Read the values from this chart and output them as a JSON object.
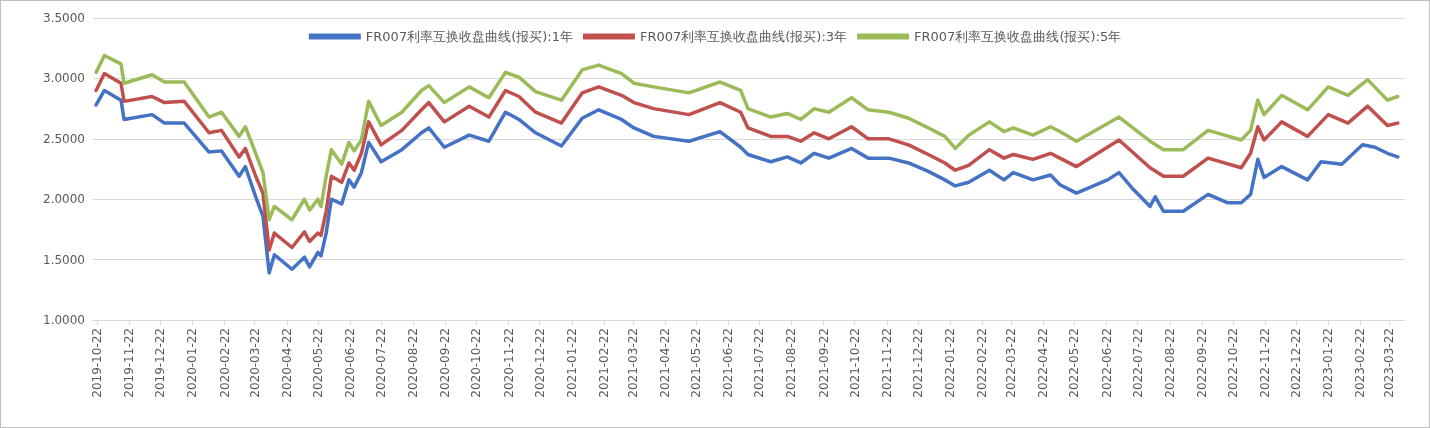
{
  "chart_data": {
    "type": "line",
    "legend": "top",
    "grid": "y",
    "marker": "none",
    "line_style": "solid",
    "xlim": [
      "2019-10-18",
      "2023-04-06"
    ],
    "xticks": [
      "2019-10-22",
      "2019-11-22",
      "2019-12-22",
      "2020-01-22",
      "2020-02-22",
      "2020-03-22",
      "2020-04-22",
      "2020-05-22",
      "2020-06-22",
      "2020-07-22",
      "2020-08-22",
      "2020-09-22",
      "2020-10-22",
      "2020-11-22",
      "2020-12-22",
      "2021-01-22",
      "2021-02-22",
      "2021-03-22",
      "2021-04-22",
      "2021-05-22",
      "2021-06-22",
      "2021-07-22",
      "2021-08-22",
      "2021-09-22",
      "2021-10-22",
      "2021-11-22",
      "2021-12-22",
      "2022-01-22",
      "2022-02-22",
      "2022-03-22",
      "2022-04-22",
      "2022-05-22",
      "2022-06-22",
      "2022-07-22",
      "2022-08-22",
      "2022-09-22",
      "2022-10-22",
      "2022-11-22",
      "2022-12-22",
      "2023-01-22",
      "2023-02-22",
      "2023-03-22"
    ],
    "ylim": [
      1,
      3.5
    ],
    "yticks": [
      {
        "value": 1,
        "label": "1.0000"
      },
      {
        "value": 1.5,
        "label": "1.5000"
      },
      {
        "value": 2,
        "label": "2.0000"
      },
      {
        "value": 2.5,
        "label": "2.5000"
      },
      {
        "value": 3,
        "label": "3.0000"
      },
      {
        "value": 3.5,
        "label": "3.5000"
      }
    ],
    "series": [
      {
        "name": "FR007利率互换收盘曲线(报买):1年",
        "color": "#4472c4",
        "x": [
          "2019-10-21",
          "2019-10-29",
          "2019-11-14",
          "2019-11-17",
          "2019-12-14",
          "2019-12-26",
          "2020-01-14",
          "2020-02-07",
          "2020-02-19",
          "2020-03-07",
          "2020-03-13",
          "2020-03-23",
          "2020-03-30",
          "2020-04-05",
          "2020-04-10",
          "2020-04-27",
          "2020-05-09",
          "2020-05-14",
          "2020-05-22",
          "2020-05-25",
          "2020-05-30",
          "2020-06-04",
          "2020-06-14",
          "2020-06-21",
          "2020-06-26",
          "2020-07-03",
          "2020-07-10",
          "2020-07-22",
          "2020-08-11",
          "2020-08-30",
          "2020-09-06",
          "2020-09-21",
          "2020-10-15",
          "2020-11-03",
          "2020-11-19",
          "2020-12-02",
          "2020-12-18",
          "2021-01-12",
          "2021-02-01",
          "2021-02-17",
          "2021-03-11",
          "2021-03-23",
          "2021-04-11",
          "2021-05-15",
          "2021-06-14",
          "2021-07-04",
          "2021-07-11",
          "2021-08-02",
          "2021-08-18",
          "2021-08-31",
          "2021-09-13",
          "2021-09-27",
          "2021-10-19",
          "2021-11-04",
          "2021-11-24",
          "2021-12-13",
          "2022-01-01",
          "2022-01-17",
          "2022-01-27",
          "2022-02-09",
          "2022-03-01",
          "2022-03-15",
          "2022-03-24",
          "2022-04-12",
          "2022-04-29",
          "2022-05-08",
          "2022-05-24",
          "2022-06-23",
          "2022-07-04",
          "2022-07-18",
          "2022-08-03",
          "2022-08-08",
          "2022-08-16",
          "2022-09-04",
          "2022-09-28",
          "2022-10-17",
          "2022-10-30",
          "2022-11-08",
          "2022-11-15",
          "2022-11-21",
          "2022-12-08",
          "2023-01-02",
          "2023-01-15",
          "2023-02-04",
          "2023-02-24",
          "2023-03-08",
          "2023-03-20",
          "2023-03-30"
        ],
        "values": [
          2.78,
          2.9,
          2.82,
          2.66,
          2.7,
          2.63,
          2.63,
          2.39,
          2.4,
          2.19,
          2.27,
          2.02,
          1.86,
          1.39,
          1.54,
          1.42,
          1.52,
          1.44,
          1.56,
          1.53,
          1.72,
          2.0,
          1.96,
          2.16,
          2.1,
          2.22,
          2.47,
          2.31,
          2.41,
          2.55,
          2.59,
          2.43,
          2.53,
          2.48,
          2.72,
          2.66,
          2.55,
          2.44,
          2.67,
          2.74,
          2.66,
          2.59,
          2.52,
          2.48,
          2.56,
          2.43,
          2.37,
          2.31,
          2.35,
          2.3,
          2.38,
          2.34,
          2.42,
          2.34,
          2.34,
          2.3,
          2.23,
          2.16,
          2.11,
          2.14,
          2.24,
          2.16,
          2.22,
          2.16,
          2.2,
          2.12,
          2.05,
          2.16,
          2.22,
          2.08,
          1.94,
          2.02,
          1.9,
          1.9,
          2.04,
          1.97,
          1.97,
          2.04,
          2.33,
          2.18,
          2.27,
          2.16,
          2.31,
          2.29,
          2.45,
          2.43,
          2.38,
          2.35
        ]
      },
      {
        "name": "FR007利率互换收盘曲线(报买):3年",
        "color": "#c0504d",
        "x": [
          "2019-10-21",
          "2019-10-29",
          "2019-11-14",
          "2019-11-17",
          "2019-12-14",
          "2019-12-26",
          "2020-01-14",
          "2020-02-07",
          "2020-02-19",
          "2020-03-07",
          "2020-03-13",
          "2020-03-23",
          "2020-03-30",
          "2020-04-05",
          "2020-04-10",
          "2020-04-27",
          "2020-05-09",
          "2020-05-14",
          "2020-05-22",
          "2020-05-25",
          "2020-05-30",
          "2020-06-04",
          "2020-06-14",
          "2020-06-21",
          "2020-06-26",
          "2020-07-03",
          "2020-07-10",
          "2020-07-22",
          "2020-08-11",
          "2020-08-30",
          "2020-09-06",
          "2020-09-21",
          "2020-10-15",
          "2020-11-03",
          "2020-11-19",
          "2020-12-02",
          "2020-12-18",
          "2021-01-12",
          "2021-02-01",
          "2021-02-17",
          "2021-03-11",
          "2021-03-23",
          "2021-04-11",
          "2021-05-15",
          "2021-06-14",
          "2021-07-04",
          "2021-07-11",
          "2021-08-02",
          "2021-08-18",
          "2021-08-31",
          "2021-09-13",
          "2021-09-27",
          "2021-10-19",
          "2021-11-04",
          "2021-11-24",
          "2021-12-13",
          "2022-01-01",
          "2022-01-17",
          "2022-01-27",
          "2022-02-09",
          "2022-03-01",
          "2022-03-15",
          "2022-03-24",
          "2022-04-12",
          "2022-04-29",
          "2022-05-08",
          "2022-05-24",
          "2022-07-04",
          "2022-08-03",
          "2022-08-16",
          "2022-09-04",
          "2022-09-28",
          "2022-10-30",
          "2022-11-08",
          "2022-11-15",
          "2022-11-21",
          "2022-12-08",
          "2023-01-02",
          "2023-01-22",
          "2023-02-10",
          "2023-03-01",
          "2023-03-20",
          "2023-03-30"
        ],
        "values": [
          2.9,
          3.04,
          2.96,
          2.81,
          2.85,
          2.8,
          2.81,
          2.55,
          2.57,
          2.35,
          2.42,
          2.19,
          2.05,
          1.58,
          1.72,
          1.6,
          1.73,
          1.65,
          1.72,
          1.7,
          1.9,
          2.19,
          2.14,
          2.3,
          2.24,
          2.38,
          2.64,
          2.45,
          2.57,
          2.74,
          2.8,
          2.64,
          2.77,
          2.68,
          2.9,
          2.85,
          2.72,
          2.63,
          2.88,
          2.93,
          2.86,
          2.8,
          2.75,
          2.7,
          2.8,
          2.72,
          2.59,
          2.52,
          2.52,
          2.48,
          2.55,
          2.5,
          2.6,
          2.5,
          2.5,
          2.45,
          2.37,
          2.3,
          2.24,
          2.28,
          2.41,
          2.34,
          2.37,
          2.33,
          2.38,
          2.34,
          2.27,
          2.49,
          2.26,
          2.19,
          2.19,
          2.34,
          2.26,
          2.38,
          2.6,
          2.49,
          2.64,
          2.52,
          2.7,
          2.63,
          2.77,
          2.61,
          2.63
        ]
      },
      {
        "name": "FR007利率互换收盘曲线(报买):5年",
        "color": "#9bbb59",
        "x": [
          "2019-10-21",
          "2019-10-29",
          "2019-11-14",
          "2019-11-17",
          "2019-12-14",
          "2019-12-26",
          "2020-01-14",
          "2020-02-07",
          "2020-02-19",
          "2020-03-07",
          "2020-03-13",
          "2020-03-23",
          "2020-03-30",
          "2020-04-05",
          "2020-04-10",
          "2020-04-27",
          "2020-05-09",
          "2020-05-14",
          "2020-05-22",
          "2020-05-25",
          "2020-05-30",
          "2020-06-04",
          "2020-06-14",
          "2020-06-21",
          "2020-06-26",
          "2020-07-03",
          "2020-07-10",
          "2020-07-22",
          "2020-08-11",
          "2020-08-30",
          "2020-09-06",
          "2020-09-21",
          "2020-10-15",
          "2020-11-03",
          "2020-11-19",
          "2020-12-02",
          "2020-12-18",
          "2021-01-12",
          "2021-02-01",
          "2021-02-17",
          "2021-03-11",
          "2021-03-23",
          "2021-04-11",
          "2021-05-15",
          "2021-06-14",
          "2021-07-04",
          "2021-07-11",
          "2021-08-02",
          "2021-08-18",
          "2021-08-31",
          "2021-09-13",
          "2021-09-27",
          "2021-10-19",
          "2021-11-04",
          "2021-11-24",
          "2021-12-13",
          "2022-01-01",
          "2022-01-17",
          "2022-01-27",
          "2022-02-09",
          "2022-03-01",
          "2022-03-15",
          "2022-03-24",
          "2022-04-12",
          "2022-04-29",
          "2022-05-08",
          "2022-05-24",
          "2022-07-04",
          "2022-08-03",
          "2022-08-16",
          "2022-09-04",
          "2022-09-28",
          "2022-10-30",
          "2022-11-08",
          "2022-11-15",
          "2022-11-21",
          "2022-12-08",
          "2023-01-02",
          "2023-01-22",
          "2023-02-10",
          "2023-03-01",
          "2023-03-20",
          "2023-03-30"
        ],
        "values": [
          3.05,
          3.19,
          3.12,
          2.96,
          3.03,
          2.97,
          2.97,
          2.68,
          2.72,
          2.52,
          2.6,
          2.38,
          2.22,
          1.83,
          1.94,
          1.83,
          2.0,
          1.91,
          2.0,
          1.94,
          2.19,
          2.41,
          2.29,
          2.47,
          2.4,
          2.49,
          2.81,
          2.61,
          2.72,
          2.9,
          2.94,
          2.8,
          2.93,
          2.84,
          3.05,
          3.01,
          2.89,
          2.82,
          3.07,
          3.11,
          3.04,
          2.96,
          2.93,
          2.88,
          2.97,
          2.9,
          2.75,
          2.68,
          2.71,
          2.66,
          2.75,
          2.72,
          2.84,
          2.74,
          2.72,
          2.67,
          2.59,
          2.52,
          2.42,
          2.53,
          2.64,
          2.56,
          2.59,
          2.53,
          2.6,
          2.56,
          2.48,
          2.68,
          2.48,
          2.41,
          2.41,
          2.57,
          2.49,
          2.57,
          2.82,
          2.7,
          2.86,
          2.74,
          2.93,
          2.86,
          2.99,
          2.82,
          2.85
        ]
      }
    ]
  }
}
